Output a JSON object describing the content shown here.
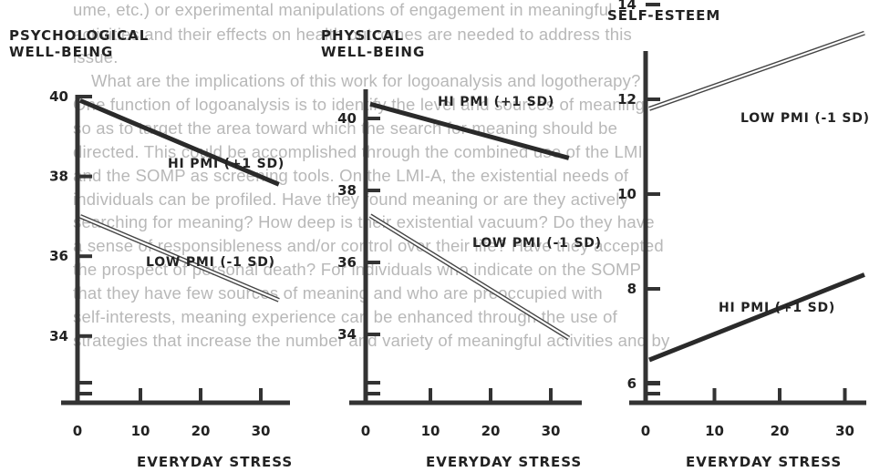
{
  "background_text": [
    "ume, etc.) or experimental manipulations of engagement in meaningful",
    "activities and their effects on health outcomes are needed to address this",
    "issue.",
    "What are the implications of this work for logoanalysis and logotherapy?",
    "One function of logoanalysis is to identify the level and sources of meaning",
    "so as to target the area toward which the search for meaning should be",
    "directed. This could be accomplished through the combined use of the LMI",
    "and the SOMP as screening tools. On the LMI-A, the existential needs of",
    "individuals can be profiled. Have they found meaning or are they actively",
    "searching for meaning? How deep is their existential vacuum? Do they have",
    "a sense of responsibleness and/or control over their life? Have they accepted",
    "the prospect of personal death? For individuals who indicate on the SOMP",
    "that they have few sources of meaning and who are preoccupied with",
    "self-interests, meaning experience can be enhanced through the use of",
    "strategies that increase the number and variety of meaningful activities and by"
  ],
  "chart_data": [
    {
      "type": "line",
      "title": "PSYCHOLOGICAL WELL-BEING",
      "xlabel": "EVERYDAY STRESS",
      "ylabel": "",
      "xlim": [
        0,
        35
      ],
      "ylim": [
        32,
        41
      ],
      "x_ticks": [
        "0",
        "10",
        "20",
        "30"
      ],
      "y_ticks": [
        "34",
        "36",
        "38",
        "40"
      ],
      "series": [
        {
          "name": "HI PMI (+1 SD)",
          "x": [
            0,
            33
          ],
          "y": [
            39.9,
            37.8
          ]
        },
        {
          "name": "LOW PMI (-1 SD)",
          "x": [
            0,
            33
          ],
          "y": [
            37.0,
            34.9
          ]
        }
      ]
    },
    {
      "type": "line",
      "title": "PHYSICAL WELL-BEING",
      "xlabel": "EVERYDAY STRESS",
      "ylabel": "",
      "xlim": [
        0,
        35
      ],
      "ylim": [
        32,
        41
      ],
      "x_ticks": [
        "0",
        "10",
        "20",
        "30"
      ],
      "y_ticks": [
        "34",
        "36",
        "38",
        "40"
      ],
      "series": [
        {
          "name": "HI PMI (+1 SD)",
          "x": [
            0,
            33
          ],
          "y": [
            40.4,
            38.9
          ]
        },
        {
          "name": "LOW PMI (-1 SD)",
          "x": [
            0,
            33
          ],
          "y": [
            37.3,
            33.9
          ]
        }
      ]
    },
    {
      "type": "line",
      "title": "SELF-ESTEEM",
      "xlabel": "EVERYDAY STRESS",
      "ylabel": "",
      "xlim": [
        0,
        35
      ],
      "ylim": [
        4,
        14
      ],
      "x_ticks": [
        "0",
        "10",
        "20",
        "30"
      ],
      "y_ticks": [
        "6",
        "8",
        "10",
        "12",
        "14"
      ],
      "series": [
        {
          "name": "LOW PMI (-1 SD)",
          "x": [
            0,
            33
          ],
          "y": [
            11.8,
            13.4
          ]
        },
        {
          "name": "HI PMI (+1 SD)",
          "x": [
            0,
            33
          ],
          "y": [
            6.5,
            8.3
          ]
        }
      ]
    }
  ]
}
